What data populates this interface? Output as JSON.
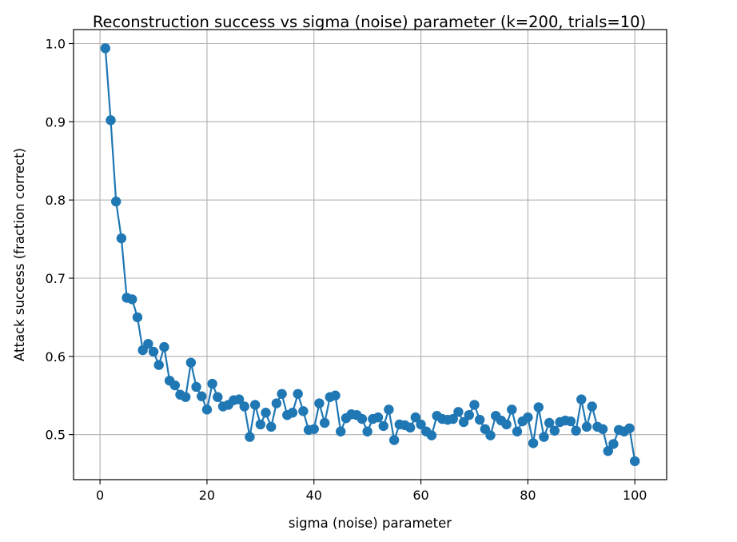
{
  "chart_data": {
    "type": "line",
    "title": "Reconstruction success vs sigma (noise) parameter (k=200, trials=10)",
    "xlabel": "sigma (noise) parameter",
    "ylabel": "Attack success (fraction correct)",
    "xlim": [
      -4.95,
      105.95
    ],
    "ylim": [
      0.4424,
      1.0179
    ],
    "xticks": [
      0,
      20,
      40,
      60,
      80,
      100
    ],
    "xtick_labels": [
      "0",
      "20",
      "40",
      "60",
      "80",
      "100"
    ],
    "yticks": [
      0.5,
      0.6,
      0.7,
      0.8,
      0.9,
      1.0
    ],
    "ytick_labels": [
      "0.5",
      "0.6",
      "0.7",
      "0.8",
      "0.9",
      "1.0"
    ],
    "grid": true,
    "line_color": "#1f77b4",
    "marker": "circle",
    "series": [
      {
        "x": [
          1,
          2,
          3,
          4,
          5,
          6,
          7,
          8,
          9,
          10,
          11,
          12,
          13,
          14,
          15,
          16,
          17,
          18,
          19,
          20,
          21,
          22,
          23,
          24,
          25,
          26,
          27,
          28,
          29,
          30,
          31,
          32,
          33,
          34,
          35,
          36,
          37,
          38,
          39,
          40,
          41,
          42,
          43,
          44,
          45,
          46,
          47,
          48,
          49,
          50,
          51,
          52,
          53,
          54,
          55,
          56,
          57,
          58,
          59,
          60,
          61,
          62,
          63,
          64,
          65,
          66,
          67,
          68,
          69,
          70,
          71,
          72,
          73,
          74,
          75,
          76,
          77,
          78,
          79,
          80,
          81,
          82,
          83,
          84,
          85,
          86,
          87,
          88,
          89,
          90,
          91,
          92,
          93,
          94,
          95,
          96,
          97,
          98,
          99,
          100
        ],
        "y": [
          0.994,
          0.902,
          0.798,
          0.751,
          0.675,
          0.673,
          0.65,
          0.608,
          0.616,
          0.606,
          0.589,
          0.612,
          0.569,
          0.563,
          0.551,
          0.548,
          0.592,
          0.561,
          0.549,
          0.532,
          0.565,
          0.548,
          0.536,
          0.538,
          0.544,
          0.545,
          0.536,
          0.497,
          0.538,
          0.513,
          0.528,
          0.51,
          0.54,
          0.552,
          0.525,
          0.528,
          0.552,
          0.53,
          0.506,
          0.507,
          0.54,
          0.515,
          0.548,
          0.55,
          0.504,
          0.521,
          0.526,
          0.525,
          0.52,
          0.504,
          0.52,
          0.522,
          0.511,
          0.532,
          0.493,
          0.513,
          0.512,
          0.509,
          0.522,
          0.513,
          0.504,
          0.499,
          0.524,
          0.52,
          0.519,
          0.52,
          0.529,
          0.516,
          0.525,
          0.538,
          0.519,
          0.507,
          0.499,
          0.524,
          0.518,
          0.513,
          0.532,
          0.504,
          0.517,
          0.522,
          0.489,
          0.535,
          0.497,
          0.515,
          0.505,
          0.516,
          0.518,
          0.517,
          0.505,
          0.545,
          0.51,
          0.536,
          0.51,
          0.507,
          0.479,
          0.488,
          0.506,
          0.504,
          0.508,
          0.466
        ]
      }
    ]
  }
}
